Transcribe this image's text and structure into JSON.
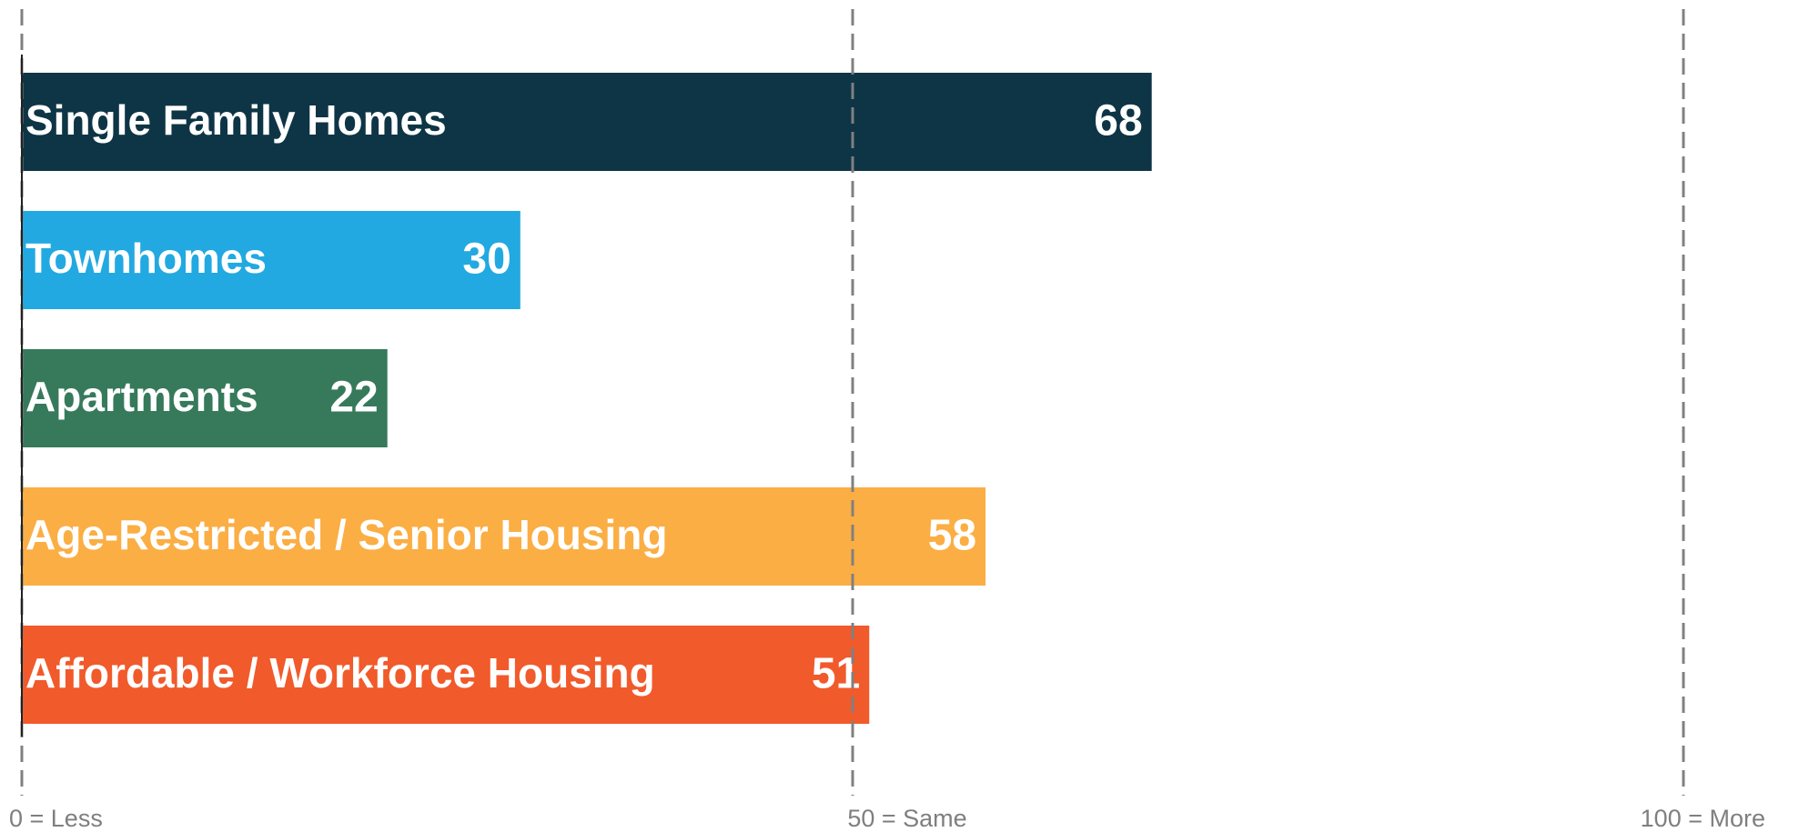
{
  "chart_data": {
    "type": "bar",
    "orientation": "horizontal",
    "categories": [
      "Single Family Homes",
      "Townhomes",
      "Apartments",
      "Age-Restricted / Senior Housing",
      "Affordable / Workforce Housing"
    ],
    "values": [
      68,
      30,
      22,
      58,
      51
    ],
    "colors": [
      "#0e3545",
      "#22a9e1",
      "#367a5b",
      "#fbae44",
      "#f15a2b"
    ],
    "xlim": [
      0,
      100
    ],
    "xticks": [
      {
        "value": 0,
        "label": "0 = Less"
      },
      {
        "value": 50,
        "label": "50 = Same"
      },
      {
        "value": 100,
        "label": "100 = More"
      }
    ],
    "grid": true
  }
}
